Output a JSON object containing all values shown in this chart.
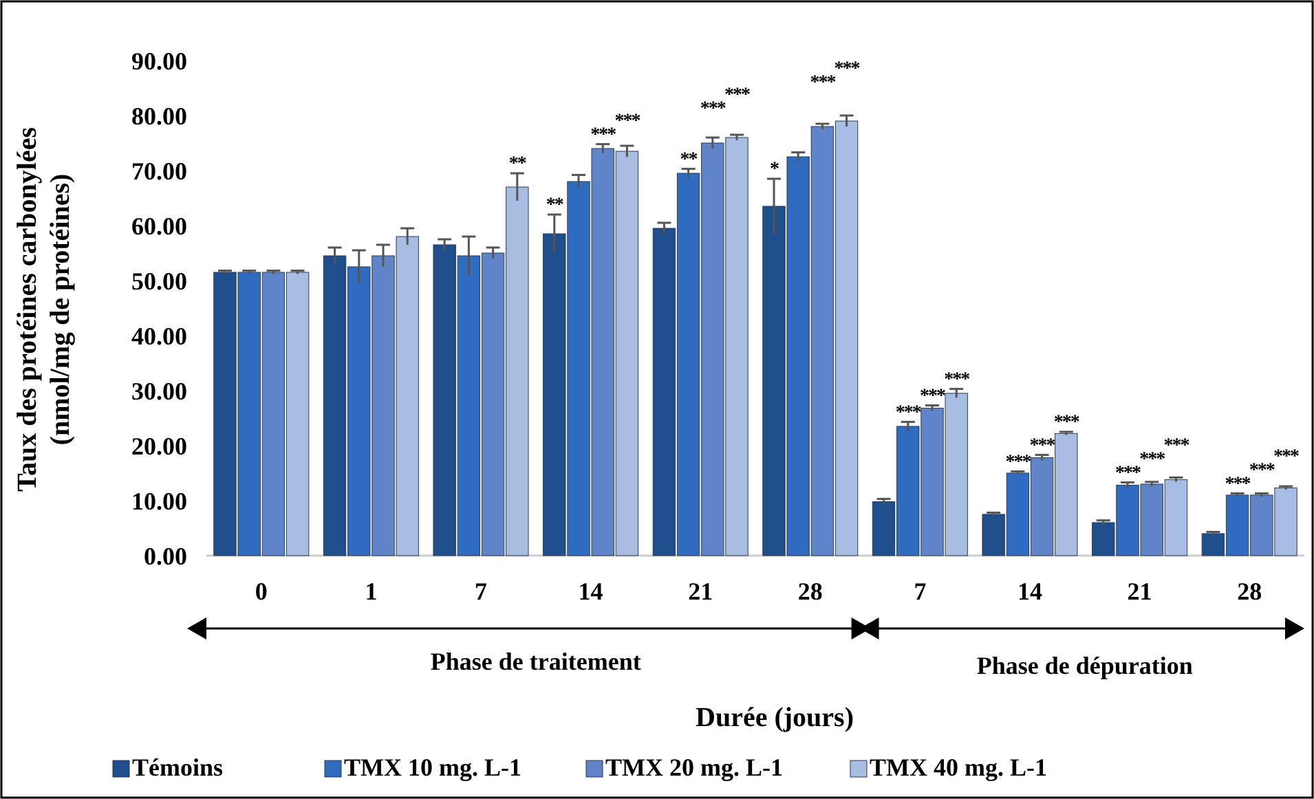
{
  "chart_data": {
    "type": "bar",
    "xlabel": "Durée (jours)",
    "ylabel": "Taux des protéines carbonylées\n(nmol/mg de protéines)",
    "categories": [
      "0",
      "1",
      "7",
      "14",
      "21",
      "28",
      "7",
      "14",
      "21",
      "28"
    ],
    "series": [
      {
        "name": "Témoins",
        "color": "#1f4e8c",
        "values": [
          51.5,
          54.5,
          56.5,
          58.5,
          59.5,
          63.5,
          9.8,
          7.5,
          6.0,
          4.0
        ],
        "errors": [
          0.3,
          1.5,
          1,
          3.5,
          1,
          5,
          0.5,
          0.3,
          0.4,
          0.3
        ],
        "value_labels": [
          null,
          null,
          null,
          "**",
          null,
          "*",
          null,
          null,
          null,
          null
        ]
      },
      {
        "name": "TMX 10 mg. L-1",
        "color": "#2f6cc0",
        "values": [
          51.5,
          52.5,
          54.5,
          68.0,
          69.5,
          72.5,
          23.5,
          15.0,
          12.8,
          11.0
        ],
        "errors": [
          0.3,
          3,
          3.5,
          1.2,
          0.8,
          0.8,
          0.8,
          0.3,
          0.5,
          0.3
        ],
        "value_labels": [
          null,
          null,
          null,
          null,
          "**",
          null,
          "***",
          "***",
          "***",
          "***"
        ]
      },
      {
        "name": "TMX 20 mg. L-1",
        "color": "#5f84c8",
        "values": [
          51.5,
          54.5,
          55.0,
          74.0,
          75.0,
          78.0,
          26.8,
          17.8,
          13.0,
          11.0
        ],
        "errors": [
          0.3,
          2,
          1,
          0.8,
          1,
          0.5,
          0.5,
          0.5,
          0.4,
          0.3
        ],
        "value_labels": [
          null,
          null,
          null,
          "***",
          "***",
          "***",
          "***",
          "***",
          "***",
          "***"
        ]
      },
      {
        "name": "TMX 40 mg. L-1",
        "color": "#a8bde2",
        "values": [
          51.5,
          58.0,
          67.0,
          73.5,
          76.0,
          79.0,
          29.5,
          22.2,
          13.8,
          12.3
        ],
        "errors": [
          0.3,
          1.5,
          2.5,
          1,
          0.5,
          1,
          0.8,
          0.3,
          0.4,
          0.3
        ],
        "value_labels": [
          null,
          null,
          "**",
          "***",
          "***",
          "***",
          "***",
          "***",
          "***",
          "***"
        ]
      }
    ],
    "ylim": [
      0,
      90
    ],
    "yticks": [
      {
        "value": 0,
        "label": "0.00"
      },
      {
        "value": 10,
        "label": "10.00"
      },
      {
        "value": 20,
        "label": "20.00"
      },
      {
        "value": 30,
        "label": "30.00"
      },
      {
        "value": 40,
        "label": "40.00"
      },
      {
        "value": 50,
        "label": "50.00"
      },
      {
        "value": 60,
        "label": "60.00"
      },
      {
        "value": 70,
        "label": "70.00"
      },
      {
        "value": 80,
        "label": "80.00"
      },
      {
        "value": 90,
        "label": "90.00"
      }
    ],
    "annotations": [
      "Phase  de traitement",
      "Phase  de dépuration"
    ],
    "grid": false,
    "legend": "bottom"
  }
}
